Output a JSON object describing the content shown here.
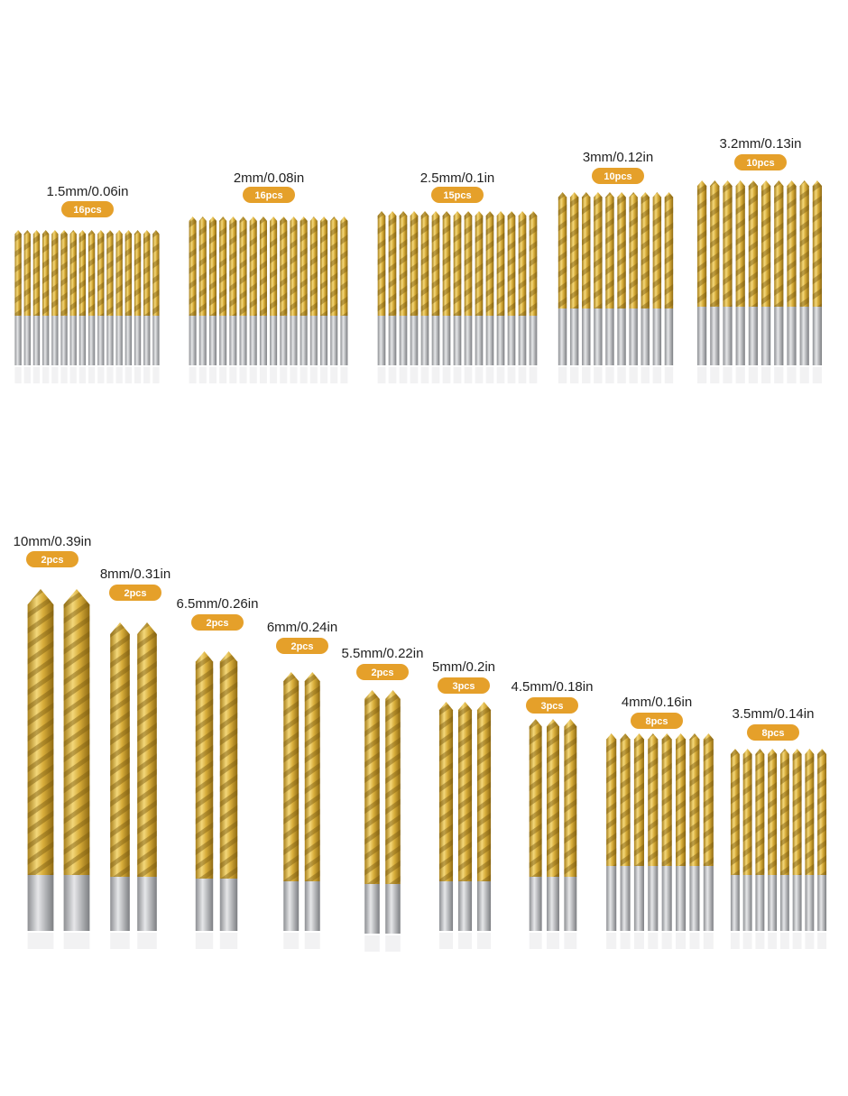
{
  "groups": [
    {
      "size": "1.5mm/0.06in",
      "count": "16pcs"
    },
    {
      "size": "2mm/0.08in",
      "count": "16pcs"
    },
    {
      "size": "2.5mm/0.1in",
      "count": "15pcs"
    },
    {
      "size": "3mm/0.12in",
      "count": "10pcs"
    },
    {
      "size": "3.2mm/0.13in",
      "count": "10pcs"
    },
    {
      "size": "10mm/0.39in",
      "count": "2pcs"
    },
    {
      "size": "8mm/0.31in",
      "count": "2pcs"
    },
    {
      "size": "6.5mm/0.26in",
      "count": "2pcs"
    },
    {
      "size": "6mm/0.24in",
      "count": "2pcs"
    },
    {
      "size": "5.5mm/0.22in",
      "count": "2pcs"
    },
    {
      "size": "5mm/0.2in",
      "count": "3pcs"
    },
    {
      "size": "4.5mm/0.18in",
      "count": "3pcs"
    },
    {
      "size": "4mm/0.16in",
      "count": "8pcs"
    },
    {
      "size": "3.5mm/0.14in",
      "count": "8pcs"
    }
  ]
}
